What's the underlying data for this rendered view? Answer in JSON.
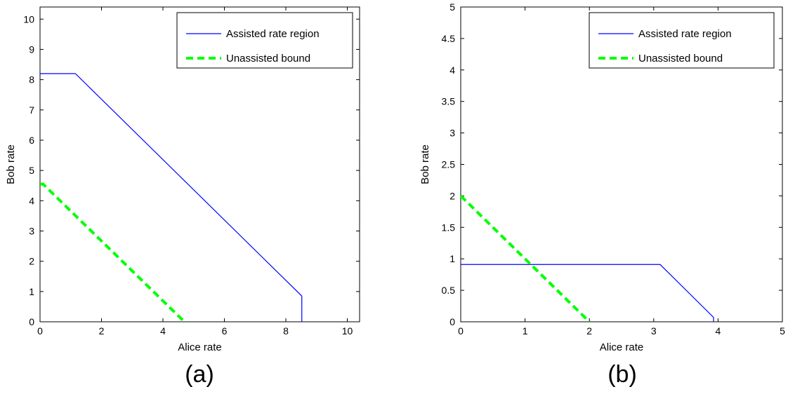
{
  "chart_data": [
    {
      "type": "line",
      "caption": "(a)",
      "xlabel": "Alice rate",
      "ylabel": "Bob rate",
      "xlim": [
        0,
        10.4
      ],
      "ylim": [
        0,
        10.4
      ],
      "xticks": [
        0,
        2,
        4,
        6,
        8,
        10
      ],
      "yticks": [
        0,
        1,
        2,
        3,
        4,
        5,
        6,
        7,
        8,
        9,
        10
      ],
      "xtick_labels": [
        "0",
        "2",
        "4",
        "6",
        "8",
        "10"
      ],
      "ytick_labels": [
        "0",
        "1",
        "2",
        "3",
        "4",
        "5",
        "6",
        "7",
        "8",
        "9",
        "10"
      ],
      "grid": false,
      "legend_position": "top-right",
      "series": [
        {
          "name": "Assisted rate region",
          "style": "solid",
          "color": "#0000ff",
          "x": [
            0,
            1.15,
            8.52,
            8.52
          ],
          "y": [
            8.2,
            8.2,
            0.85,
            0
          ]
        },
        {
          "name": "Unassisted bound",
          "style": "dashed",
          "color": "#00ff00",
          "x": [
            0,
            0.1,
            0.25,
            4.7
          ],
          "y": [
            4.55,
            4.55,
            4.4,
            0
          ]
        }
      ]
    },
    {
      "type": "line",
      "caption": "(b)",
      "xlabel": "Alice rate",
      "ylabel": "Bob rate",
      "xlim": [
        0,
        5
      ],
      "ylim": [
        0,
        5
      ],
      "xticks": [
        0,
        1,
        2,
        3,
        4,
        5
      ],
      "yticks": [
        0,
        0.5,
        1,
        1.5,
        2,
        2.5,
        3,
        3.5,
        4,
        4.5,
        5
      ],
      "xtick_labels": [
        "0",
        "1",
        "2",
        "3",
        "4",
        "5"
      ],
      "ytick_labels": [
        "0",
        "0.5",
        "1",
        "1.5",
        "2",
        "2.5",
        "3",
        "3.5",
        "4",
        "4.5",
        "5"
      ],
      "grid": false,
      "legend_position": "top-right",
      "series": [
        {
          "name": "Assisted rate region",
          "style": "solid",
          "color": "#0000ff",
          "x": [
            0,
            3.1,
            3.93,
            3.93
          ],
          "y": [
            0.91,
            0.91,
            0.07,
            0
          ]
        },
        {
          "name": "Unassisted bound",
          "style": "dashed",
          "color": "#00ff00",
          "x": [
            0,
            2.0
          ],
          "y": [
            2.0,
            0
          ]
        }
      ]
    }
  ]
}
